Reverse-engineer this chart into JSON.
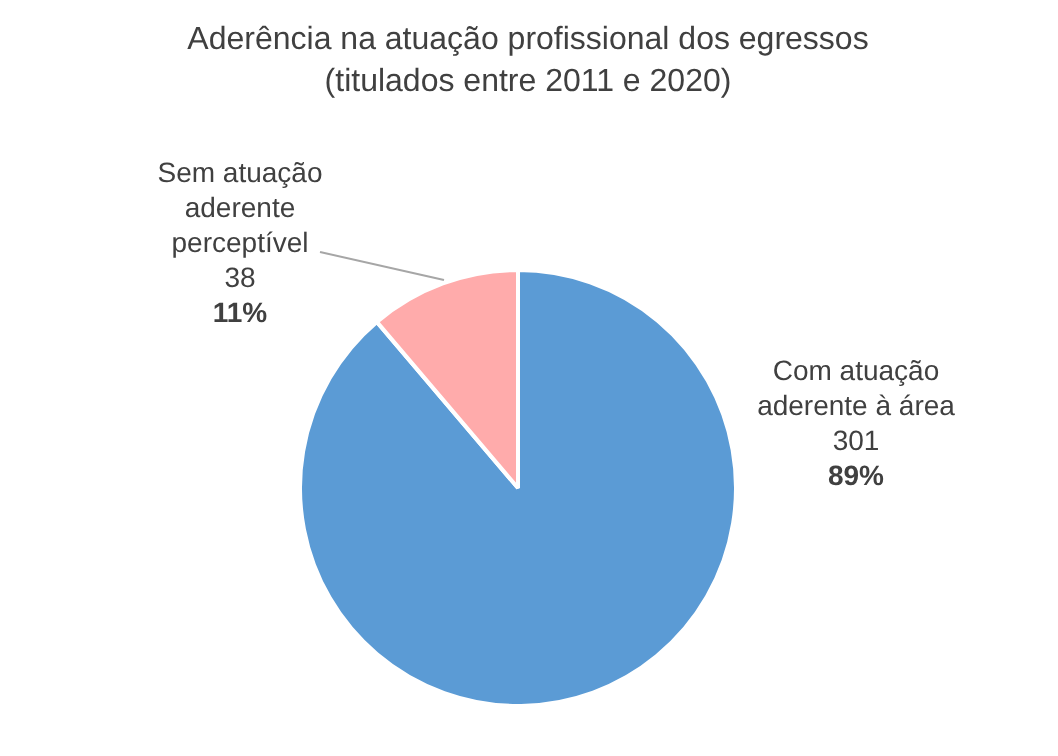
{
  "chart_data": {
    "type": "pie",
    "title": "Aderência na atuação profissional dos egressos",
    "subtitle": "(titulados entre 2011 e 2020)",
    "categories": [
      "Com atuação aderente à área",
      "Sem atuação aderente perceptível"
    ],
    "values": [
      301,
      38
    ],
    "colors": [
      "#5b9bd5",
      "#ffabab"
    ],
    "data_labels": true,
    "annotations": [
      "89%",
      "11%"
    ],
    "legend": false
  }
}
